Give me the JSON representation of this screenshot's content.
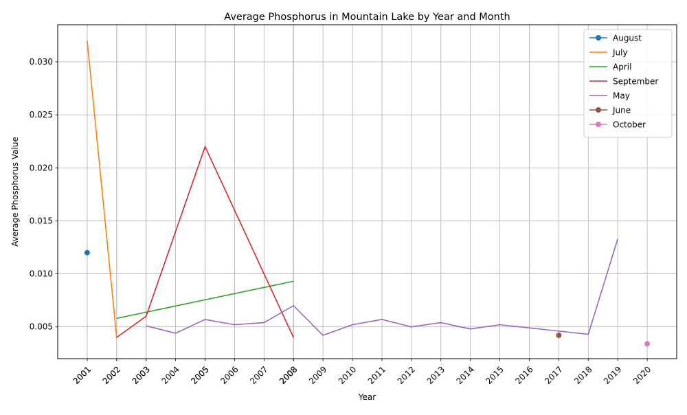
{
  "chart_data": {
    "type": "line",
    "title": "Average Phosphorus in Mountain Lake by Year and Month",
    "xlabel": "Year",
    "ylabel": "Average Phosphorus Value",
    "xlim": [
      2000,
      2021
    ],
    "ylim": [
      0.002,
      0.0335
    ],
    "y_ticks": [
      "0.005",
      "0.010",
      "0.015",
      "0.020",
      "0.025",
      "0.030"
    ],
    "x_ticks": [
      "2001",
      "2001",
      "2002",
      "2002",
      "2003",
      "2003",
      "2004",
      "2005",
      "2005",
      "2006",
      "2007",
      "2008",
      "2008",
      "2008",
      "2009",
      "2010",
      "2011",
      "2012",
      "2013",
      "2014",
      "2015",
      "2016",
      "2017",
      "2018",
      "2019",
      "2020"
    ],
    "grid": true,
    "legend_position": "top-right",
    "series": [
      {
        "name": "August",
        "color": "#1f77b4",
        "marker": true,
        "x": [
          2001
        ],
        "y": [
          0.012
        ]
      },
      {
        "name": "July",
        "color": "#ff7f0e",
        "marker": false,
        "x": [
          2001,
          2002
        ],
        "y": [
          0.032,
          0.004
        ]
      },
      {
        "name": "April",
        "color": "#2ca02c",
        "marker": false,
        "x": [
          2002,
          2008
        ],
        "y": [
          0.0058,
          0.0093
        ]
      },
      {
        "name": "September",
        "color": "#d62728",
        "marker": false,
        "x": [
          2002,
          2003,
          2005,
          2008
        ],
        "y": [
          0.004,
          0.006,
          0.022,
          0.004
        ]
      },
      {
        "name": "May",
        "color": "#9467bd",
        "marker": false,
        "x": [
          2003,
          2004,
          2005,
          2006,
          2007,
          2008,
          2009,
          2010,
          2011,
          2012,
          2013,
          2014,
          2015,
          2016,
          2017,
          2018,
          2019
        ],
        "y": [
          0.0051,
          0.0044,
          0.0057,
          0.0052,
          0.0054,
          0.007,
          0.0042,
          0.0052,
          0.0057,
          0.005,
          0.0054,
          0.0048,
          0.0052,
          0.0049,
          0.0046,
          0.0043,
          0.0133
        ]
      },
      {
        "name": "June",
        "color": "#8c564b",
        "marker": true,
        "x": [
          2017
        ],
        "y": [
          0.0042
        ]
      },
      {
        "name": "October",
        "color": "#e377c2",
        "marker": true,
        "x": [
          2020
        ],
        "y": [
          0.0034
        ]
      }
    ]
  }
}
